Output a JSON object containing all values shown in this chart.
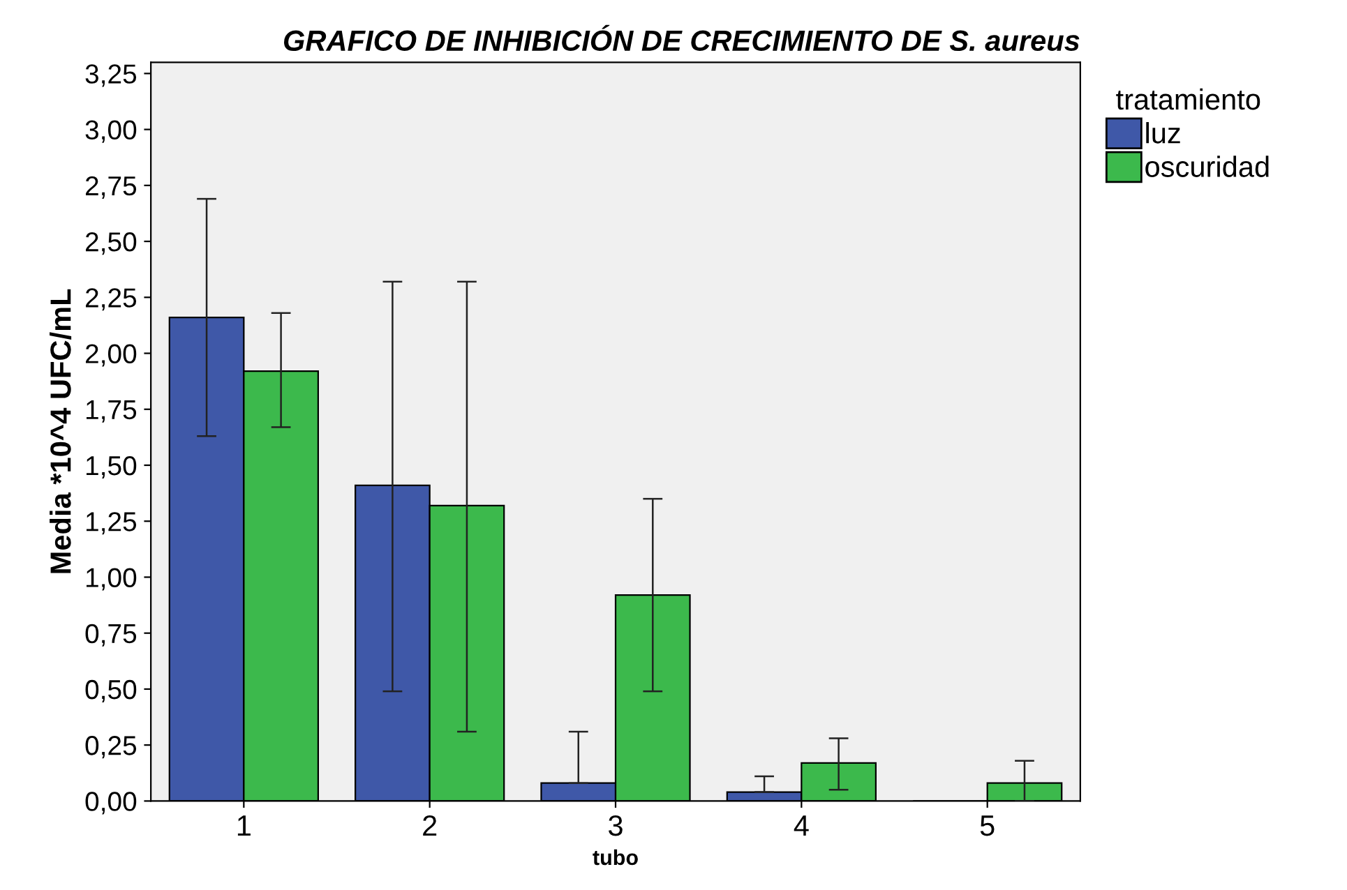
{
  "chart_data": {
    "type": "bar",
    "title": "GRAFICO DE INHIBICIÓN DE CRECIMIENTO DE S. aureus",
    "xlabel": "tubo",
    "ylabel": "Media *10^4 UFC/mL",
    "legend_title": "tratamiento",
    "categories": [
      "1",
      "2",
      "3",
      "4",
      "5"
    ],
    "series": [
      {
        "name": "luz",
        "color": "#3f58a8",
        "values": [
          2.16,
          1.41,
          0.08,
          0.04,
          0.0
        ],
        "errors": [
          [
            1.63,
            2.69
          ],
          [
            0.49,
            2.32
          ],
          [
            0.08,
            0.31
          ],
          [
            0.04,
            0.11
          ],
          null
        ]
      },
      {
        "name": "oscuridad",
        "color": "#3cb94c",
        "values": [
          1.92,
          1.32,
          0.92,
          0.17,
          0.08
        ],
        "errors": [
          [
            1.67,
            2.18
          ],
          [
            0.31,
            2.32
          ],
          [
            0.49,
            1.35
          ],
          [
            0.05,
            0.28
          ],
          [
            0.0,
            0.18
          ]
        ]
      }
    ],
    "ylim": [
      0,
      3.3
    ],
    "yticks": [
      {
        "value": 0,
        "label": "0,00"
      },
      {
        "value": 0.25,
        "label": "0,25"
      },
      {
        "value": 0.5,
        "label": "0,50"
      },
      {
        "value": 0.75,
        "label": "0,75"
      },
      {
        "value": 1.0,
        "label": "1,00"
      },
      {
        "value": 1.25,
        "label": "1,25"
      },
      {
        "value": 1.5,
        "label": "1,50"
      },
      {
        "value": 1.75,
        "label": "1,75"
      },
      {
        "value": 2.0,
        "label": "2,00"
      },
      {
        "value": 2.25,
        "label": "2,25"
      },
      {
        "value": 2.5,
        "label": "2,50"
      },
      {
        "value": 2.75,
        "label": "2,75"
      },
      {
        "value": 3.0,
        "label": "3,00"
      },
      {
        "value": 3.25,
        "label": "3,25"
      }
    ],
    "grid": false,
    "legend": "top right"
  }
}
